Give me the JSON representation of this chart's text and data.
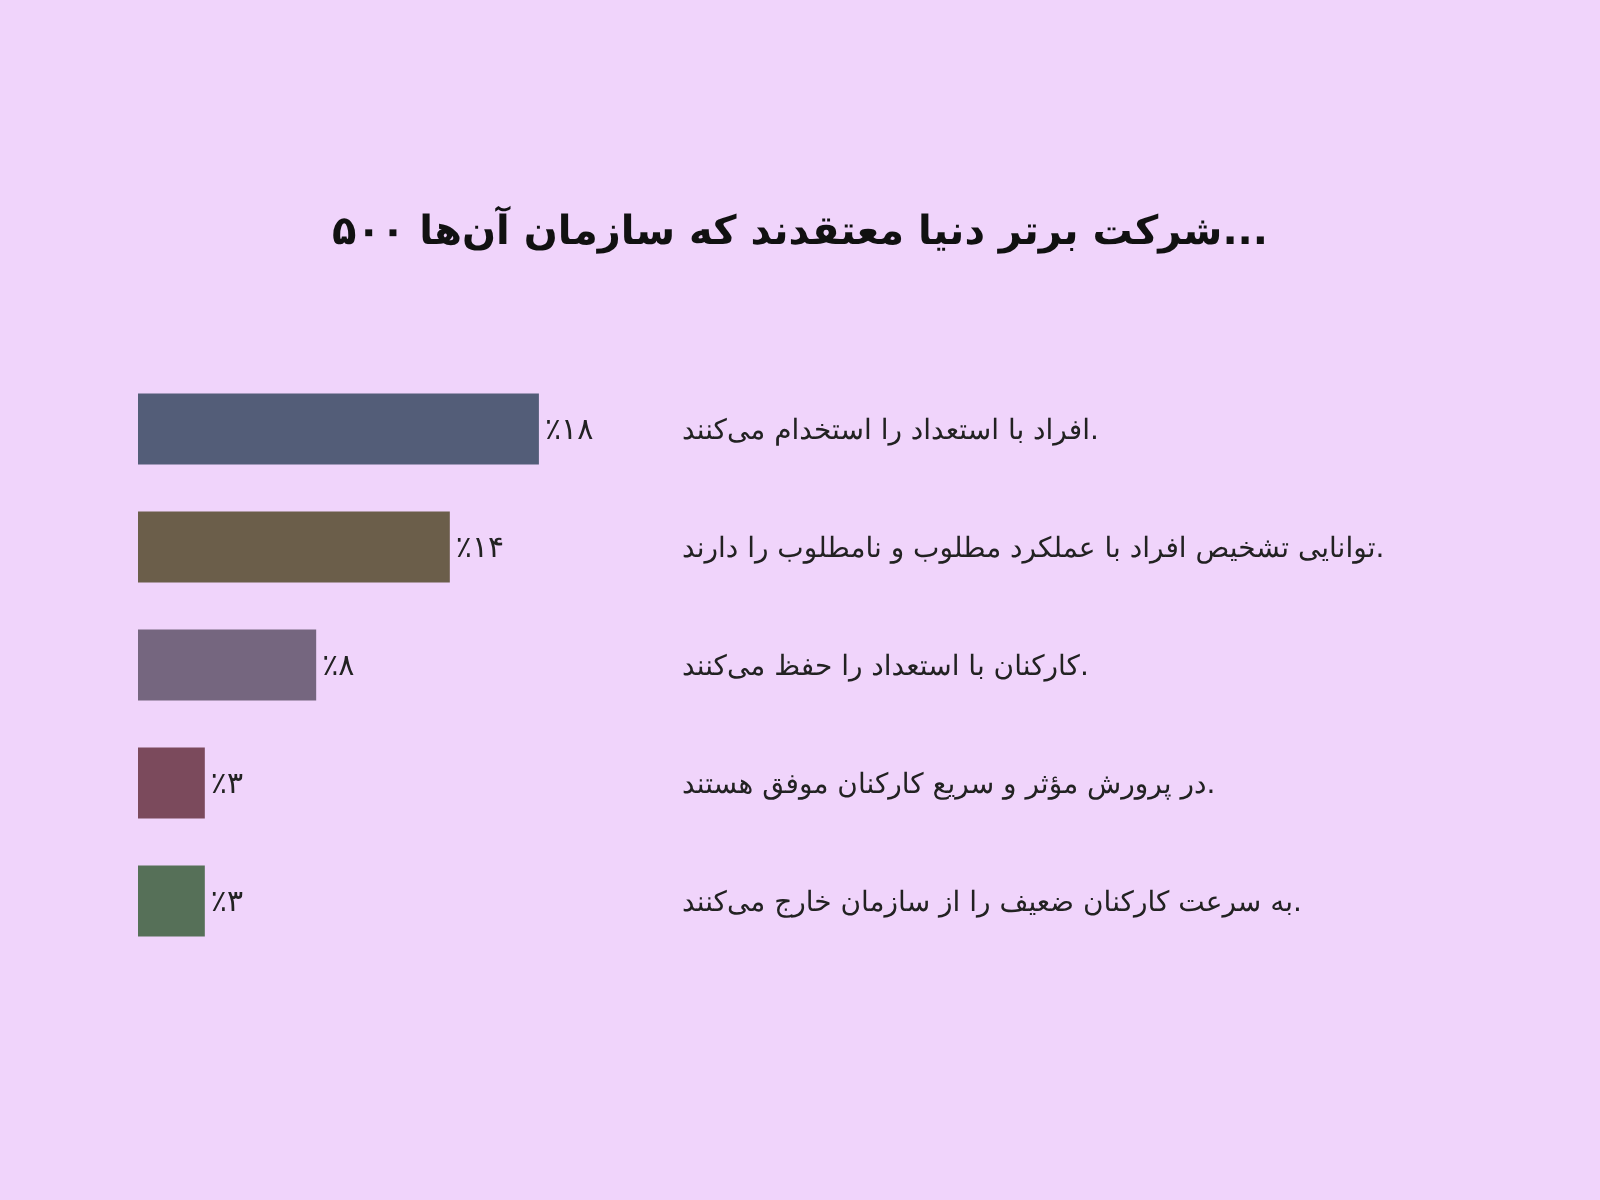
{
  "chart_data": {
    "type": "bar",
    "orientation": "horizontal",
    "title": "۵۰۰ شرکت برتر دنیا معتقدند که سازمان آن‌ها...",
    "categories": [
      "افراد با استعداد را استخدام می‌کنند.",
      "توانایی تشخیص افراد با عملکرد مطلوب و نامطلوب را دارند.",
      "کارکنان با استعداد را حفظ می‌کنند.",
      "در پرورش مؤثر و سریع کارکنان موفق هستند.",
      "به سرعت کارکنان ضعیف را از سازمان خارج می‌کنند."
    ],
    "values": [
      18,
      14,
      8,
      3,
      3
    ],
    "colors": [
      "#535d78",
      "#6b5e4a",
      "#75667f",
      "#7b4a5c",
      "#567058"
    ],
    "value_labels": [
      "٪۱۸",
      "٪۱۴",
      "٪۸",
      "٪۳",
      "٪۳"
    ],
    "grid": false
  }
}
